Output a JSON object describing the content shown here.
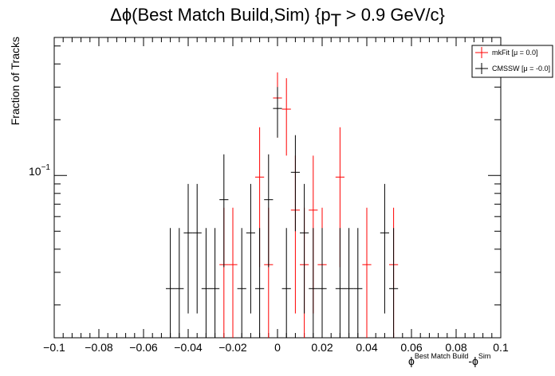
{
  "chart_data": {
    "type": "scatter",
    "title_main": "Δϕ(Best Match Build,Sim) {p",
    "title_sub": "T",
    "title_tail": " > 0.9 GeV/c}",
    "ylabel": "Fraction of Tracks",
    "xlabel_phi1": "ϕ",
    "xlabel_sup1": "Best Match Build",
    "xlabel_mid": "-ϕ",
    "xlabel_sup2": "Sim",
    "ytick_base": "10",
    "ytick_exp": "−1",
    "x_ticks": [
      "−0.1",
      "−0.08",
      "−0.06",
      "−0.04",
      "−0.02",
      "0",
      "0.02",
      "0.04",
      "0.06",
      "0.08",
      "0.1"
    ],
    "xlim": [
      -0.1,
      0.1
    ],
    "ylim": [
      0.0133,
      0.556
    ],
    "yscale": "log",
    "bin_width": 0.004,
    "legend": {
      "placement": "top-right",
      "entries": [
        {
          "label": "mkFit  [μ =  0.0]",
          "color": "#ff0000"
        },
        {
          "label": "CMSSW  [μ = -0.0]",
          "color": "#000000"
        }
      ]
    },
    "series": [
      {
        "name": "mkFit",
        "color": "#ff0000",
        "points": [
          {
            "x": -0.024,
            "y": 0.033,
            "lo": 0.0125,
            "hi": 0.067
          },
          {
            "x": -0.02,
            "y": 0.033,
            "lo": 0.0125,
            "hi": 0.067
          },
          {
            "x": -0.008,
            "y": 0.098,
            "lo": 0.032,
            "hi": 0.182
          },
          {
            "x": -0.004,
            "y": 0.033,
            "lo": 0.0125,
            "hi": 0.067
          },
          {
            "x": 0.0,
            "y": 0.262,
            "lo": 0.16,
            "hi": 0.36
          },
          {
            "x": 0.004,
            "y": 0.228,
            "lo": 0.128,
            "hi": 0.335
          },
          {
            "x": 0.008,
            "y": 0.065,
            "lo": 0.018,
            "hi": 0.128
          },
          {
            "x": 0.012,
            "y": 0.033,
            "lo": 0.0125,
            "hi": 0.067
          },
          {
            "x": 0.016,
            "y": 0.065,
            "lo": 0.018,
            "hi": 0.128
          },
          {
            "x": 0.02,
            "y": 0.033,
            "lo": 0.0125,
            "hi": 0.067
          },
          {
            "x": 0.028,
            "y": 0.098,
            "lo": 0.032,
            "hi": 0.182
          },
          {
            "x": 0.04,
            "y": 0.033,
            "lo": 0.0125,
            "hi": 0.067
          },
          {
            "x": 0.052,
            "y": 0.033,
            "lo": 0.0125,
            "hi": 0.067
          }
        ]
      },
      {
        "name": "CMSSW",
        "color": "#000000",
        "points": [
          {
            "x": -0.048,
            "y": 0.0245,
            "lo": 0.0125,
            "hi": 0.052
          },
          {
            "x": -0.044,
            "y": 0.0245,
            "lo": 0.0125,
            "hi": 0.052
          },
          {
            "x": -0.04,
            "y": 0.049,
            "lo": 0.018,
            "hi": 0.09
          },
          {
            "x": -0.036,
            "y": 0.049,
            "lo": 0.018,
            "hi": 0.09
          },
          {
            "x": -0.032,
            "y": 0.0245,
            "lo": 0.0125,
            "hi": 0.052
          },
          {
            "x": -0.028,
            "y": 0.0245,
            "lo": 0.0125,
            "hi": 0.052
          },
          {
            "x": -0.024,
            "y": 0.074,
            "lo": 0.032,
            "hi": 0.13
          },
          {
            "x": -0.016,
            "y": 0.0245,
            "lo": 0.0125,
            "hi": 0.052
          },
          {
            "x": -0.012,
            "y": 0.049,
            "lo": 0.018,
            "hi": 0.09
          },
          {
            "x": -0.008,
            "y": 0.0245,
            "lo": 0.0125,
            "hi": 0.052
          },
          {
            "x": -0.004,
            "y": 0.074,
            "lo": 0.032,
            "hi": 0.13
          },
          {
            "x": 0.0,
            "y": 0.23,
            "lo": 0.16,
            "hi": 0.3
          },
          {
            "x": 0.004,
            "y": 0.0245,
            "lo": 0.0125,
            "hi": 0.052
          },
          {
            "x": 0.008,
            "y": 0.104,
            "lo": 0.05,
            "hi": 0.165
          },
          {
            "x": 0.012,
            "y": 0.049,
            "lo": 0.018,
            "hi": 0.09
          },
          {
            "x": 0.016,
            "y": 0.0245,
            "lo": 0.0125,
            "hi": 0.052
          },
          {
            "x": 0.02,
            "y": 0.0245,
            "lo": 0.0125,
            "hi": 0.052
          },
          {
            "x": 0.028,
            "y": 0.0245,
            "lo": 0.0125,
            "hi": 0.052
          },
          {
            "x": 0.032,
            "y": 0.0245,
            "lo": 0.0125,
            "hi": 0.052
          },
          {
            "x": 0.036,
            "y": 0.0245,
            "lo": 0.0125,
            "hi": 0.052
          },
          {
            "x": 0.048,
            "y": 0.049,
            "lo": 0.018,
            "hi": 0.09
          },
          {
            "x": 0.052,
            "y": 0.0245,
            "lo": 0.0125,
            "hi": 0.052
          }
        ]
      }
    ]
  }
}
